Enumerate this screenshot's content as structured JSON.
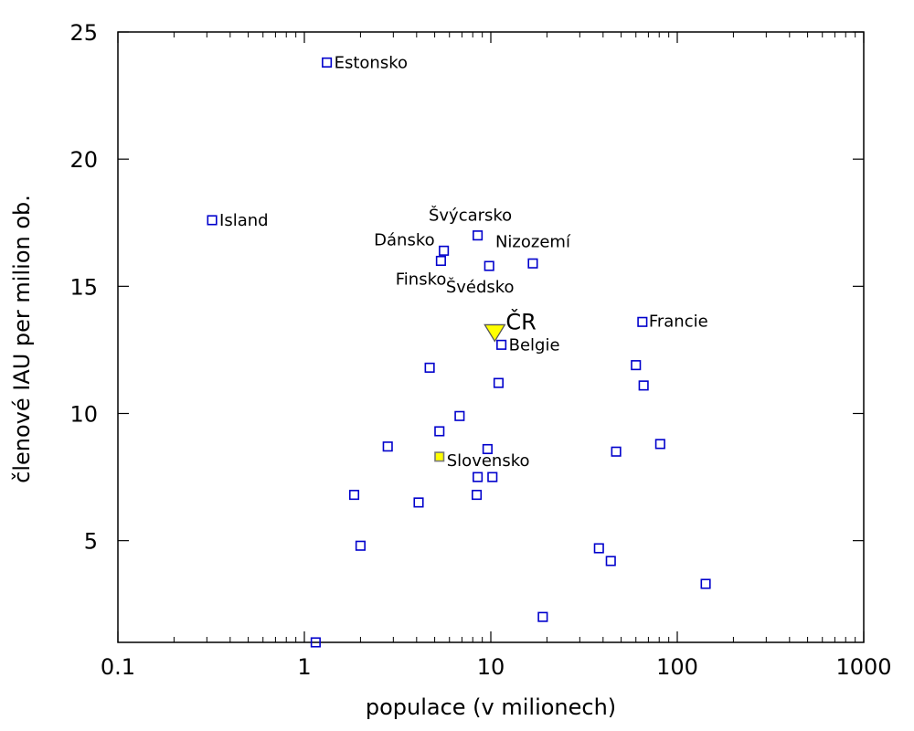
{
  "chart_data": {
    "type": "scatter",
    "xlabel": "populace (v milionech)",
    "ylabel": "členové IAU per milion ob.",
    "xscale": "log",
    "xlim": [
      0.1,
      1000
    ],
    "ylim": [
      1,
      25
    ],
    "xticks": [
      {
        "value": 0.1,
        "label": "0.1"
      },
      {
        "value": 1,
        "label": "1"
      },
      {
        "value": 10,
        "label": "10"
      },
      {
        "value": 100,
        "label": "100"
      },
      {
        "value": 1000,
        "label": "1000"
      }
    ],
    "yticks": [
      {
        "value": 5,
        "label": "5"
      },
      {
        "value": 10,
        "label": "10"
      },
      {
        "value": 15,
        "label": "15"
      },
      {
        "value": 20,
        "label": "20"
      },
      {
        "value": 25,
        "label": "25"
      }
    ],
    "grid": false,
    "colors": {
      "marker": "#0000cc",
      "highlight": "#ffff00",
      "axis": "#000000"
    },
    "points": [
      {
        "x": 1.32,
        "y": 23.8,
        "label": "Estonsko",
        "marker": "square"
      },
      {
        "x": 0.32,
        "y": 17.6,
        "label": "Island",
        "marker": "square"
      },
      {
        "x": 8.5,
        "y": 17.0,
        "label": "Švýcarsko",
        "marker": "square"
      },
      {
        "x": 5.6,
        "y": 16.4,
        "label": "Dánsko",
        "marker": "square"
      },
      {
        "x": 16.8,
        "y": 15.9,
        "label": "Nizozemí",
        "marker": "square"
      },
      {
        "x": 5.4,
        "y": 16.0,
        "label": "Finsko",
        "marker": "square"
      },
      {
        "x": 9.8,
        "y": 15.8,
        "label": "Švédsko",
        "marker": "square"
      },
      {
        "x": 10.5,
        "y": 13.2,
        "label": "ČR",
        "marker": "triangle",
        "highlight": true
      },
      {
        "x": 11.4,
        "y": 12.7,
        "label": "Belgie",
        "marker": "square"
      },
      {
        "x": 65.0,
        "y": 13.6,
        "label": "Francie",
        "marker": "square"
      },
      {
        "x": 5.3,
        "y": 8.3,
        "label": "Slovensko",
        "marker": "square",
        "highlight": true
      },
      {
        "x": 4.7,
        "y": 11.8,
        "label": "",
        "marker": "square"
      },
      {
        "x": 11.0,
        "y": 11.2,
        "label": "",
        "marker": "square"
      },
      {
        "x": 60.0,
        "y": 11.9,
        "label": "",
        "marker": "square"
      },
      {
        "x": 66.0,
        "y": 11.1,
        "label": "",
        "marker": "square"
      },
      {
        "x": 6.8,
        "y": 9.9,
        "label": "",
        "marker": "square"
      },
      {
        "x": 5.3,
        "y": 9.3,
        "label": "",
        "marker": "square"
      },
      {
        "x": 2.8,
        "y": 8.7,
        "label": "",
        "marker": "square"
      },
      {
        "x": 9.6,
        "y": 8.6,
        "label": "",
        "marker": "square"
      },
      {
        "x": 47.0,
        "y": 8.5,
        "label": "",
        "marker": "square"
      },
      {
        "x": 81.0,
        "y": 8.8,
        "label": "",
        "marker": "square"
      },
      {
        "x": 8.5,
        "y": 7.5,
        "label": "",
        "marker": "square"
      },
      {
        "x": 10.2,
        "y": 7.5,
        "label": "",
        "marker": "square"
      },
      {
        "x": 8.4,
        "y": 6.8,
        "label": "",
        "marker": "square"
      },
      {
        "x": 1.85,
        "y": 6.8,
        "label": "",
        "marker": "square"
      },
      {
        "x": 4.1,
        "y": 6.5,
        "label": "",
        "marker": "square"
      },
      {
        "x": 2.0,
        "y": 4.8,
        "label": "",
        "marker": "square"
      },
      {
        "x": 38.0,
        "y": 4.7,
        "label": "",
        "marker": "square"
      },
      {
        "x": 44.0,
        "y": 4.2,
        "label": "",
        "marker": "square"
      },
      {
        "x": 142.0,
        "y": 3.3,
        "label": "",
        "marker": "square"
      },
      {
        "x": 19.0,
        "y": 2.0,
        "label": "",
        "marker": "square"
      },
      {
        "x": 1.15,
        "y": 1.0,
        "label": "",
        "marker": "square"
      }
    ]
  }
}
